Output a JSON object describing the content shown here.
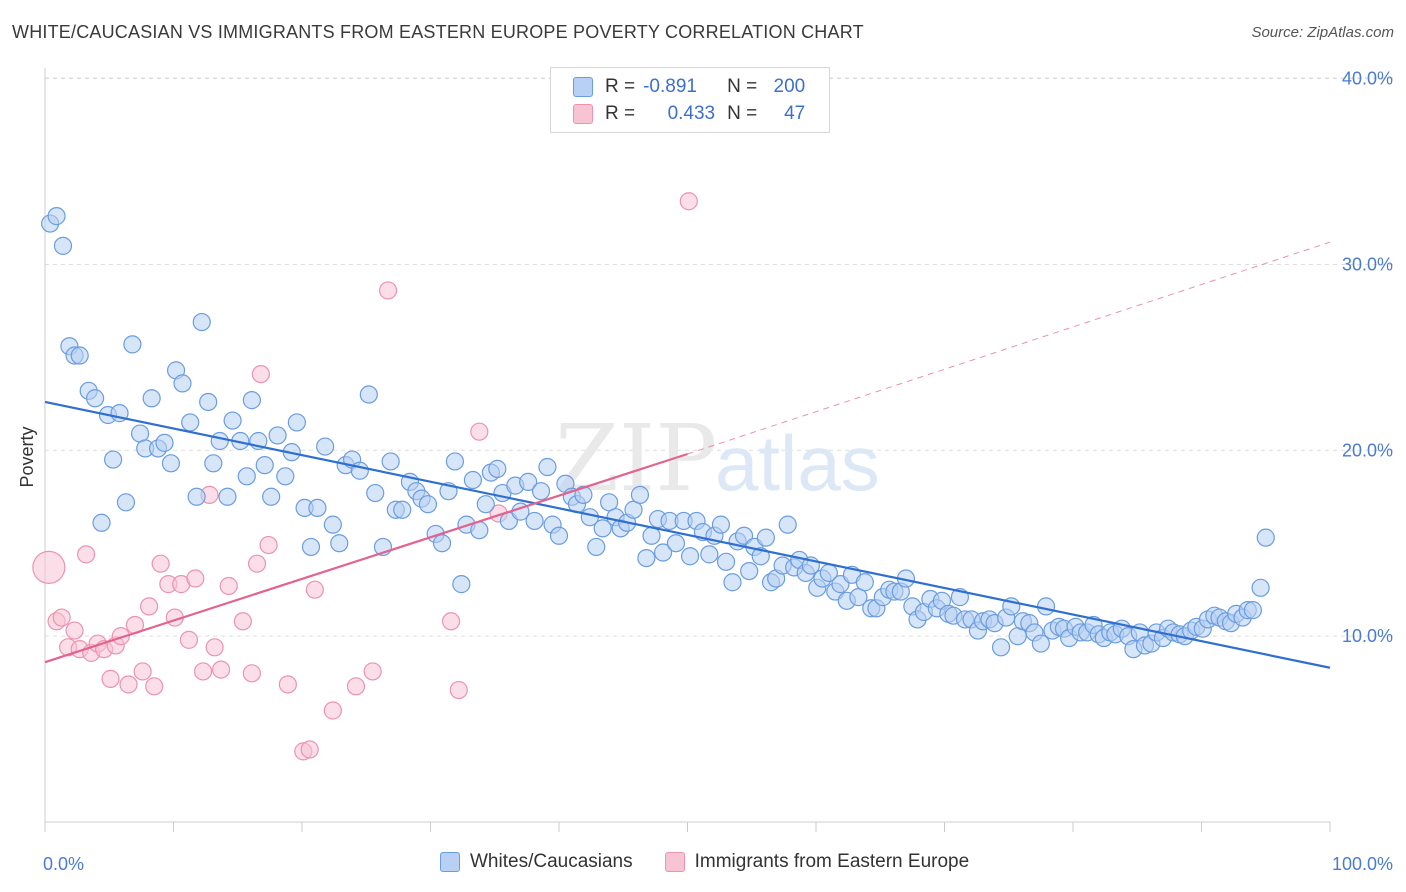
{
  "header": {
    "title": "WHITE/CAUCASIAN VS IMMIGRANTS FROM EASTERN EUROPE POVERTY CORRELATION CHART",
    "source": "Source: ZipAtlas.com"
  },
  "watermark": {
    "zip": "ZIP",
    "atlas": "atlas"
  },
  "legend": {
    "row1": {
      "r_label": "R =",
      "r_value": "-0.891",
      "n_label": "N =",
      "n_value": "200"
    },
    "row2": {
      "r_label": "R =",
      "r_value": "0.433",
      "n_label": "N =",
      "n_value": "47"
    }
  },
  "colors": {
    "blue_fill": "#b7d0f3",
    "blue_stroke": "#6a9de0",
    "blue_line": "#2f6fd0",
    "pink_fill": "#f8c3d3",
    "pink_stroke": "#eb93b0",
    "pink_line": "#e2638f",
    "grid": "#dddddd",
    "tick_label": "#4a7bd0"
  },
  "chart_data": {
    "type": "scatter",
    "title": "WHITE/CAUCASIAN VS IMMIGRANTS FROM EASTERN EUROPE POVERTY CORRELATION CHART",
    "xlabel": "",
    "ylabel": "Poverty",
    "xlim": [
      0,
      100
    ],
    "ylim": [
      0,
      41
    ],
    "x_tick_labels": [
      "0.0%",
      "100.0%"
    ],
    "y_ticks": [
      10,
      20,
      30,
      40
    ],
    "y_tick_labels": [
      "10.0%",
      "20.0%",
      "30.0%",
      "40.0%"
    ],
    "grid": true,
    "legend_position": "top-center",
    "series": [
      {
        "name": "Whites/Caucasians",
        "R": -0.891,
        "N": 200,
        "trend": {
          "x": [
            0,
            100
          ],
          "y": [
            22.6,
            8.3
          ],
          "style": "solid"
        },
        "points": [
          [
            0.4,
            32.2
          ],
          [
            0.9,
            32.6
          ],
          [
            1.4,
            31.0
          ],
          [
            1.9,
            25.6
          ],
          [
            2.3,
            25.1
          ],
          [
            2.7,
            25.1
          ],
          [
            3.4,
            23.2
          ],
          [
            3.9,
            22.8
          ],
          [
            4.4,
            16.1
          ],
          [
            4.9,
            21.9
          ],
          [
            5.3,
            19.5
          ],
          [
            5.8,
            22.0
          ],
          [
            6.3,
            17.2
          ],
          [
            6.8,
            25.7
          ],
          [
            7.4,
            20.9
          ],
          [
            7.8,
            20.1
          ],
          [
            8.3,
            22.8
          ],
          [
            8.8,
            20.1
          ],
          [
            9.3,
            20.4
          ],
          [
            9.8,
            19.3
          ],
          [
            10.2,
            24.3
          ],
          [
            10.7,
            23.6
          ],
          [
            11.3,
            21.5
          ],
          [
            11.8,
            17.5
          ],
          [
            12.2,
            26.9
          ],
          [
            12.7,
            22.6
          ],
          [
            13.1,
            19.3
          ],
          [
            13.6,
            20.5
          ],
          [
            14.2,
            17.5
          ],
          [
            14.6,
            21.6
          ],
          [
            15.2,
            20.5
          ],
          [
            15.7,
            18.6
          ],
          [
            16.1,
            22.7
          ],
          [
            16.6,
            20.5
          ],
          [
            17.1,
            19.2
          ],
          [
            17.6,
            17.5
          ],
          [
            18.1,
            20.8
          ],
          [
            18.7,
            18.6
          ],
          [
            19.2,
            19.9
          ],
          [
            19.6,
            21.5
          ],
          [
            20.2,
            16.9
          ],
          [
            20.7,
            14.8
          ],
          [
            21.2,
            16.9
          ],
          [
            21.8,
            20.2
          ],
          [
            22.4,
            16.0
          ],
          [
            22.9,
            15.0
          ],
          [
            23.4,
            19.2
          ],
          [
            23.9,
            19.5
          ],
          [
            24.5,
            18.9
          ],
          [
            25.2,
            23.0
          ],
          [
            25.7,
            17.7
          ],
          [
            26.3,
            14.8
          ],
          [
            26.9,
            19.4
          ],
          [
            27.3,
            16.8
          ],
          [
            27.8,
            16.8
          ],
          [
            28.4,
            18.3
          ],
          [
            28.9,
            17.8
          ],
          [
            29.3,
            17.4
          ],
          [
            29.8,
            17.1
          ],
          [
            30.4,
            15.5
          ],
          [
            30.9,
            15.0
          ],
          [
            31.4,
            17.8
          ],
          [
            31.9,
            19.4
          ],
          [
            32.4,
            12.8
          ],
          [
            32.8,
            16.0
          ],
          [
            33.3,
            18.4
          ],
          [
            33.8,
            15.7
          ],
          [
            34.3,
            17.1
          ],
          [
            34.7,
            18.8
          ],
          [
            35.2,
            19.0
          ],
          [
            35.6,
            17.7
          ],
          [
            36.1,
            16.2
          ],
          [
            36.6,
            18.1
          ],
          [
            37.0,
            16.7
          ],
          [
            37.6,
            18.3
          ],
          [
            38.1,
            16.2
          ],
          [
            38.6,
            17.8
          ],
          [
            39.1,
            19.1
          ],
          [
            39.5,
            16.0
          ],
          [
            40.0,
            15.4
          ],
          [
            40.5,
            18.2
          ],
          [
            41.0,
            17.5
          ],
          [
            41.4,
            17.1
          ],
          [
            41.9,
            17.6
          ],
          [
            42.4,
            16.4
          ],
          [
            42.9,
            14.8
          ],
          [
            43.4,
            15.8
          ],
          [
            43.9,
            17.2
          ],
          [
            44.4,
            16.4
          ],
          [
            44.8,
            15.8
          ],
          [
            45.3,
            16.1
          ],
          [
            45.8,
            16.8
          ],
          [
            46.3,
            17.6
          ],
          [
            46.8,
            14.2
          ],
          [
            47.2,
            15.4
          ],
          [
            47.7,
            16.3
          ],
          [
            48.1,
            14.5
          ],
          [
            48.6,
            16.2
          ],
          [
            49.1,
            15.0
          ],
          [
            49.7,
            16.2
          ],
          [
            50.2,
            14.3
          ],
          [
            50.7,
            16.2
          ],
          [
            51.2,
            15.6
          ],
          [
            51.7,
            14.4
          ],
          [
            52.1,
            15.4
          ],
          [
            52.6,
            16.0
          ],
          [
            53.0,
            14.0
          ],
          [
            53.5,
            12.9
          ],
          [
            53.9,
            15.1
          ],
          [
            54.4,
            15.4
          ],
          [
            54.8,
            13.5
          ],
          [
            55.2,
            14.8
          ],
          [
            55.7,
            14.3
          ],
          [
            56.1,
            15.3
          ],
          [
            56.5,
            12.9
          ],
          [
            56.9,
            13.1
          ],
          [
            57.4,
            13.8
          ],
          [
            57.8,
            16.0
          ],
          [
            58.3,
            13.7
          ],
          [
            58.7,
            14.1
          ],
          [
            59.2,
            13.4
          ],
          [
            59.6,
            13.8
          ],
          [
            60.1,
            12.6
          ],
          [
            60.5,
            13.1
          ],
          [
            61.0,
            13.4
          ],
          [
            61.5,
            12.4
          ],
          [
            61.9,
            12.8
          ],
          [
            62.4,
            11.9
          ],
          [
            62.8,
            13.3
          ],
          [
            63.3,
            12.1
          ],
          [
            63.8,
            12.9
          ],
          [
            64.3,
            11.5
          ],
          [
            64.7,
            11.5
          ],
          [
            65.2,
            12.1
          ],
          [
            65.7,
            12.5
          ],
          [
            66.1,
            12.4
          ],
          [
            66.6,
            12.4
          ],
          [
            67.0,
            13.1
          ],
          [
            67.5,
            11.6
          ],
          [
            67.9,
            10.9
          ],
          [
            68.4,
            11.3
          ],
          [
            68.9,
            12.0
          ],
          [
            69.4,
            11.5
          ],
          [
            69.8,
            11.9
          ],
          [
            70.3,
            11.2
          ],
          [
            70.7,
            11.1
          ],
          [
            71.2,
            12.1
          ],
          [
            71.6,
            10.9
          ],
          [
            72.1,
            10.9
          ],
          [
            72.6,
            10.3
          ],
          [
            73.0,
            10.8
          ],
          [
            73.5,
            10.9
          ],
          [
            73.9,
            10.7
          ],
          [
            74.4,
            9.4
          ],
          [
            74.8,
            11.0
          ],
          [
            75.2,
            11.6
          ],
          [
            75.7,
            10.0
          ],
          [
            76.1,
            10.8
          ],
          [
            76.6,
            10.7
          ],
          [
            77.0,
            10.2
          ],
          [
            77.5,
            9.6
          ],
          [
            77.9,
            11.6
          ],
          [
            78.4,
            10.3
          ],
          [
            78.9,
            10.5
          ],
          [
            79.3,
            10.4
          ],
          [
            79.7,
            9.9
          ],
          [
            80.2,
            10.5
          ],
          [
            80.6,
            10.2
          ],
          [
            81.1,
            10.2
          ],
          [
            81.6,
            10.6
          ],
          [
            82.0,
            10.1
          ],
          [
            82.4,
            9.9
          ],
          [
            82.9,
            10.2
          ],
          [
            83.3,
            10.1
          ],
          [
            83.8,
            10.4
          ],
          [
            84.3,
            10.0
          ],
          [
            84.7,
            9.3
          ],
          [
            85.2,
            10.2
          ],
          [
            85.6,
            9.5
          ],
          [
            86.1,
            9.6
          ],
          [
            86.5,
            10.2
          ],
          [
            87.0,
            9.9
          ],
          [
            87.4,
            10.4
          ],
          [
            87.8,
            10.2
          ],
          [
            88.3,
            10.1
          ],
          [
            88.7,
            10.0
          ],
          [
            89.2,
            10.3
          ],
          [
            89.6,
            10.5
          ],
          [
            90.1,
            10.4
          ],
          [
            90.5,
            10.9
          ],
          [
            91.0,
            11.1
          ],
          [
            91.4,
            11.0
          ],
          [
            91.9,
            10.8
          ],
          [
            92.3,
            10.7
          ],
          [
            92.7,
            11.2
          ],
          [
            93.2,
            11.0
          ],
          [
            93.6,
            11.4
          ],
          [
            94.0,
            11.4
          ],
          [
            94.6,
            12.6
          ],
          [
            95.0,
            15.3
          ]
        ]
      },
      {
        "name": "Immigrants from Eastern Europe",
        "R": 0.433,
        "N": 47,
        "trend": {
          "x": [
            0,
            50
          ],
          "y": [
            8.6,
            19.8
          ],
          "style": "solid",
          "extension": {
            "x": [
              50,
              100
            ],
            "y": [
              19.8,
              31.2
            ],
            "style": "dashed"
          }
        },
        "points": [
          [
            0.3,
            13.7
          ],
          [
            0.9,
            10.8
          ],
          [
            1.3,
            11.0
          ],
          [
            1.8,
            9.4
          ],
          [
            2.3,
            10.3
          ],
          [
            2.7,
            9.3
          ],
          [
            3.2,
            14.4
          ],
          [
            3.6,
            9.1
          ],
          [
            4.1,
            9.6
          ],
          [
            4.6,
            9.3
          ],
          [
            5.1,
            7.7
          ],
          [
            5.5,
            9.5
          ],
          [
            5.9,
            10.0
          ],
          [
            6.5,
            7.4
          ],
          [
            7.0,
            10.6
          ],
          [
            7.6,
            8.1
          ],
          [
            8.1,
            11.6
          ],
          [
            8.5,
            7.3
          ],
          [
            9.0,
            13.9
          ],
          [
            9.6,
            12.8
          ],
          [
            10.1,
            11.0
          ],
          [
            10.6,
            12.8
          ],
          [
            11.2,
            9.8
          ],
          [
            11.7,
            13.1
          ],
          [
            12.3,
            8.1
          ],
          [
            12.8,
            17.6
          ],
          [
            13.2,
            9.4
          ],
          [
            13.7,
            8.2
          ],
          [
            14.3,
            12.7
          ],
          [
            15.4,
            10.8
          ],
          [
            16.1,
            8.0
          ],
          [
            16.5,
            13.9
          ],
          [
            16.8,
            24.1
          ],
          [
            17.4,
            14.9
          ],
          [
            18.9,
            7.4
          ],
          [
            20.1,
            3.8
          ],
          [
            20.6,
            3.9
          ],
          [
            21.0,
            12.5
          ],
          [
            22.4,
            6.0
          ],
          [
            24.2,
            7.3
          ],
          [
            25.5,
            8.1
          ],
          [
            26.7,
            28.6
          ],
          [
            31.6,
            10.8
          ],
          [
            32.2,
            7.1
          ],
          [
            33.8,
            21.0
          ],
          [
            35.3,
            16.6
          ],
          [
            50.1,
            33.4
          ]
        ]
      }
    ]
  },
  "bottom_legend": {
    "item1": "Whites/Caucasians",
    "item2": "Immigrants from Eastern Europe"
  }
}
